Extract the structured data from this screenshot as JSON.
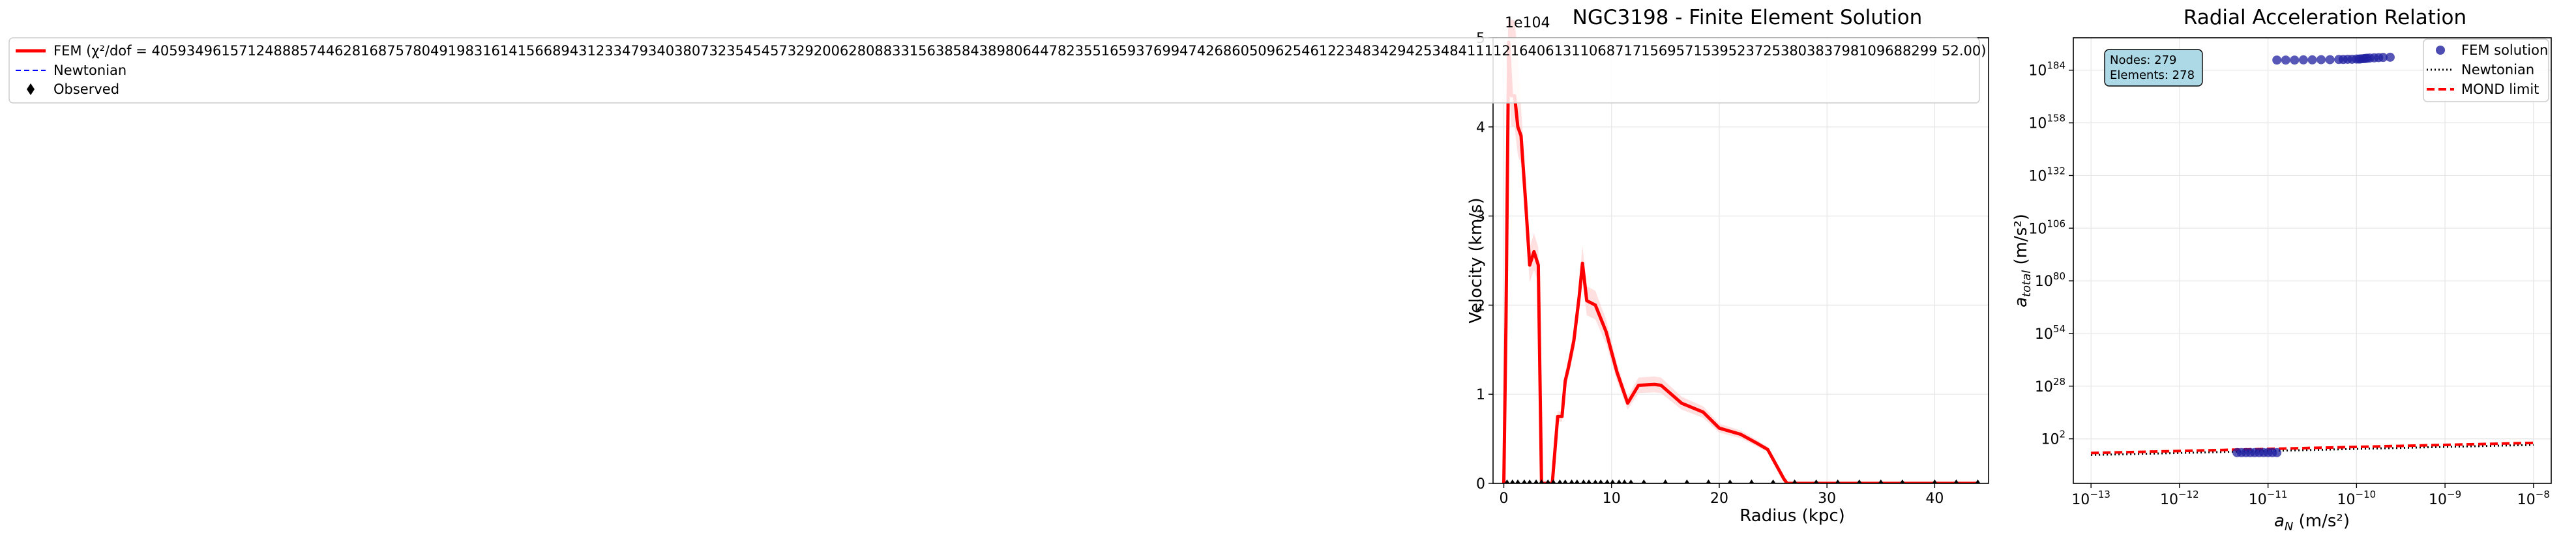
{
  "figure": {
    "background": "#ffffff",
    "panels": 2
  },
  "chart_data": [
    {
      "type": "line",
      "title": "NGC3198 - Finite Element Solution",
      "xlabel": "Radius (kpc)",
      "ylabel": "Velocity (km/s)",
      "y_scale_label": "1e104",
      "xlim": [
        -1,
        45
      ],
      "ylim": [
        0,
        5
      ],
      "x_ticks": [
        0,
        10,
        20,
        30,
        40
      ],
      "y_ticks": [
        0,
        1,
        2,
        3,
        4,
        5
      ],
      "grid": true,
      "legend_placement": "upper-left",
      "colors": {
        "fem": "#ff0000",
        "fem_fill": "#ffcccc",
        "newtonian": "#0000ff",
        "observed": "#000000",
        "grid": "#e6e6e6"
      },
      "series": [
        {
          "name": "FEM (χ²/dof = 4059349615712488857446281687578049198316141566894312334793403807323545457329200628088331563858438980644782355165937699474268605096254612234834294253484111121640613110687171569571539523725380383798109688299 52.00)",
          "style": "solid-red",
          "points": [
            [
              0.0,
              0.0
            ],
            [
              0.2,
              1.8
            ],
            [
              0.45,
              4.95
            ],
            [
              0.7,
              4.35
            ],
            [
              1.0,
              4.35
            ],
            [
              1.3,
              4.0
            ],
            [
              1.6,
              3.9
            ],
            [
              2.0,
              3.2
            ],
            [
              2.4,
              2.45
            ],
            [
              2.8,
              2.6
            ],
            [
              3.2,
              2.45
            ],
            [
              3.5,
              0.0
            ],
            [
              4.5,
              0.0
            ],
            [
              5.0,
              0.75
            ],
            [
              5.4,
              0.75
            ],
            [
              5.7,
              1.15
            ],
            [
              6.0,
              1.3
            ],
            [
              6.5,
              1.6
            ],
            [
              7.0,
              2.1
            ],
            [
              7.3,
              2.47
            ],
            [
              7.7,
              2.05
            ],
            [
              8.5,
              2.0
            ],
            [
              9.5,
              1.7
            ],
            [
              10.5,
              1.25
            ],
            [
              11.5,
              0.9
            ],
            [
              12.5,
              1.1
            ],
            [
              14.0,
              1.11
            ],
            [
              14.6,
              1.1
            ],
            [
              16.5,
              0.9
            ],
            [
              18.5,
              0.8
            ],
            [
              20.0,
              0.62
            ],
            [
              22.0,
              0.55
            ],
            [
              23.5,
              0.45
            ],
            [
              24.5,
              0.38
            ],
            [
              26.0,
              0.05
            ],
            [
              26.3,
              0.0
            ],
            [
              44.0,
              0.0
            ]
          ]
        },
        {
          "name": "Newtonian",
          "style": "dashed-blue",
          "points": [
            [
              0.0,
              0.0
            ],
            [
              44.0,
              0.0
            ]
          ]
        },
        {
          "name": "Observed",
          "style": "black-diamond",
          "x": [
            0.3,
            0.8,
            1.3,
            1.9,
            2.4,
            3.0,
            3.5,
            4.1,
            4.6,
            5.2,
            5.7,
            6.3,
            6.8,
            7.4,
            7.9,
            8.5,
            9.0,
            9.6,
            10.1,
            10.7,
            11.2,
            11.8,
            13.0,
            15.0,
            17.0,
            19.0,
            21.0,
            23.0,
            25.0,
            27.0,
            29.0,
            31.0,
            33.0,
            35.0,
            37.0,
            40.0,
            42.0,
            44.0
          ],
          "y_constant": 0.0
        }
      ]
    },
    {
      "type": "scatter",
      "title": "Radial Acceleration Relation",
      "xlabel": "a_N (m/s²)",
      "ylabel": "a_total (m/s²)",
      "x_scale": "log",
      "y_scale": "log",
      "xlim_exp": [
        -13.2,
        -7.8
      ],
      "ylim_exp": [
        -20,
        200
      ],
      "x_tick_exponents": [
        -13,
        -12,
        -11,
        -10,
        -9,
        -8
      ],
      "y_tick_exponents": [
        2,
        28,
        54,
        80,
        106,
        132,
        158,
        184
      ],
      "grid": true,
      "legend_placement": "upper-right",
      "annotation": {
        "nodes_line": "Nodes: 279",
        "elements_line": "Elements: 278",
        "box_color": "#add8e6"
      },
      "legend_entries": [
        "FEM solution",
        "Newtonian",
        "MOND limit"
      ],
      "colors": {
        "fem": "#1f1fa0",
        "newtonian": "#000000",
        "mond": "#ff0000",
        "grid": "#e6e6e6"
      },
      "series": [
        {
          "name": "FEM solution",
          "style": "blue-circle",
          "upper_cluster_log_x": [
            -10.9,
            -10.8,
            -10.7,
            -10.6,
            -10.5,
            -10.4,
            -10.3,
            -10.2,
            -10.15,
            -10.1,
            -10.05,
            -10.0,
            -9.97,
            -9.95,
            -9.92,
            -9.9,
            -9.88,
            -9.85,
            -9.8,
            -9.75,
            -9.7,
            -9.62
          ],
          "upper_cluster_log_y": [
            189.0,
            189.0,
            189.0,
            189.1,
            189.1,
            189.2,
            189.2,
            189.3,
            189.3,
            189.4,
            189.4,
            189.5,
            189.5,
            189.6,
            189.7,
            189.8,
            189.9,
            190.0,
            190.1,
            190.2,
            190.3,
            190.4
          ],
          "lower_cluster_log_x": [
            -11.35,
            -11.3,
            -11.25,
            -11.2,
            -11.15,
            -11.1,
            -11.05,
            -11.0,
            -10.95,
            -10.9
          ],
          "lower_cluster_log_y": [
            -4.8,
            -4.8,
            -4.8,
            -4.8,
            -4.8,
            -4.8,
            -4.8,
            -4.8,
            -4.8,
            -4.8
          ]
        },
        {
          "name": "Newtonian",
          "style": "dotted-black",
          "log_points": [
            [
              -13.0,
              -6.0
            ],
            [
              -8.0,
              -1.0
            ]
          ]
        },
        {
          "name": "MOND limit",
          "style": "dashed-red",
          "log_points": [
            [
              -13.0,
              -5.0
            ],
            [
              -8.0,
              0.0
            ]
          ]
        }
      ]
    }
  ]
}
